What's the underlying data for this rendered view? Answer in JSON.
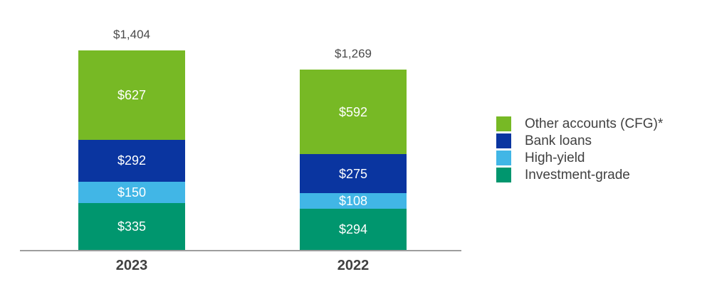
{
  "chart_data": {
    "type": "bar",
    "stacked": true,
    "orientation": "vertical",
    "title": "",
    "categories": [
      "2023",
      "2022"
    ],
    "series": [
      {
        "name": "Other accounts (CFG)*",
        "color": "#77b925",
        "values": [
          627,
          592
        ]
      },
      {
        "name": "Bank loans",
        "color": "#0a35a0",
        "values": [
          292,
          275
        ]
      },
      {
        "name": "High-yield",
        "color": "#41b6e6",
        "values": [
          150,
          108
        ]
      },
      {
        "name": "Investment-grade",
        "color": "#00966e",
        "values": [
          335,
          294
        ]
      }
    ],
    "totals": [
      1404,
      1269
    ],
    "total_labels": [
      "$1,404",
      "$1,269"
    ],
    "segment_labels": {
      "2023": [
        "$627",
        "$292",
        "$150",
        "$335"
      ],
      "2022": [
        "$592",
        "$275",
        "$108",
        "$294"
      ]
    },
    "legend_position": "right",
    "legend_entries": [
      "Other accounts (CFG)*",
      "Bank loans",
      "High-yield",
      "Investment-grade"
    ],
    "axis_line_color": "#9e9e9e",
    "value_label_color": "#ffffff",
    "total_label_color": "#4a4a4a",
    "category_label_color": "#414141",
    "legend_text_color": "#414141",
    "background_color": "#ffffff",
    "grid": false,
    "ylim": [
      0,
      1404
    ]
  }
}
